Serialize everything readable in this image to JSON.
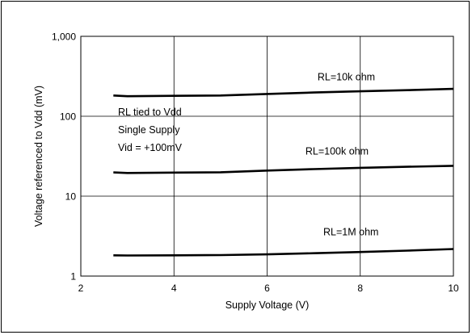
{
  "chart_data": {
    "type": "line",
    "xlabel": "Supply Voltage (V)",
    "ylabel": "Voltage referenced to Vdd (mV)",
    "xlim": [
      2,
      10
    ],
    "ylim": [
      1,
      1000
    ],
    "yscale": "log",
    "grid": true,
    "xticks": [
      "2",
      "4",
      "6",
      "8",
      "10"
    ],
    "yticks": [
      "1",
      "10",
      "100",
      "1,000"
    ],
    "conditions": [
      "RL tied to Vdd",
      "Single Supply",
      "Vid = +100mV"
    ],
    "series": [
      {
        "name": "RL=10k ohm",
        "x": [
          2.7,
          3.0,
          4.0,
          5.0,
          6.0,
          7.0,
          8.0,
          9.0,
          10.0
        ],
        "y": [
          182,
          178,
          180,
          182,
          190,
          198,
          205,
          212,
          220
        ]
      },
      {
        "name": "RL=100k ohm",
        "x": [
          2.7,
          3.0,
          4.0,
          5.0,
          6.0,
          7.0,
          8.0,
          9.0,
          10.0
        ],
        "y": [
          19.8,
          19.5,
          19.7,
          19.9,
          20.9,
          21.8,
          22.6,
          23.3,
          24.0
        ]
      },
      {
        "name": "RL=1M ohm",
        "x": [
          2.7,
          3.0,
          4.0,
          5.0,
          6.0,
          7.0,
          8.0,
          9.0,
          10.0
        ],
        "y": [
          1.82,
          1.81,
          1.82,
          1.83,
          1.87,
          1.93,
          2.0,
          2.08,
          2.18
        ]
      }
    ]
  }
}
